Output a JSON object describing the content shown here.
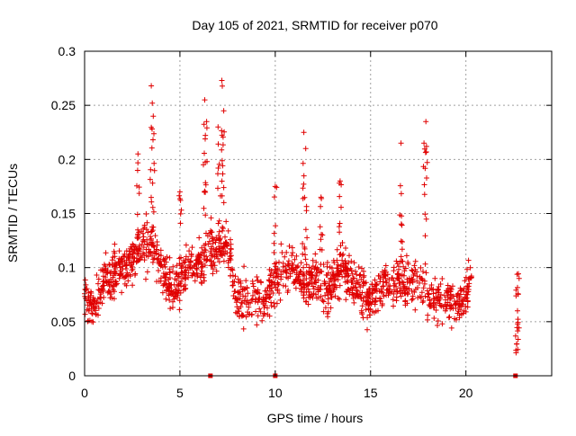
{
  "chart_data": {
    "type": "scatter",
    "title": "Day 105 of 2021, SRMTID for receiver p070",
    "xlabel": "GPS time / hours",
    "ylabel": "SRMTID / TECUs",
    "xlim": [
      0,
      24.5
    ],
    "ylim": [
      0,
      0.3
    ],
    "xticks": [
      0,
      5,
      10,
      15,
      20
    ],
    "xtick_labels": [
      "0",
      "5",
      "10",
      "15",
      "20"
    ],
    "yticks": [
      0,
      0.05,
      0.1,
      0.15,
      0.2,
      0.25,
      0.3
    ],
    "ytick_labels": [
      "0",
      "0.05",
      "0.1",
      "0.15",
      "0.2",
      "0.25",
      "0.3"
    ],
    "grid": true,
    "marker": "+",
    "color": "#e00000",
    "profile": [
      [
        0.0,
        0.075
      ],
      [
        0.5,
        0.065
      ],
      [
        1.0,
        0.085
      ],
      [
        1.5,
        0.095
      ],
      [
        2.0,
        0.1
      ],
      [
        2.5,
        0.105
      ],
      [
        3.0,
        0.12
      ],
      [
        3.5,
        0.125
      ],
      [
        4.0,
        0.1
      ],
      [
        4.5,
        0.08
      ],
      [
        5.0,
        0.085
      ],
      [
        5.5,
        0.1
      ],
      [
        6.0,
        0.1
      ],
      [
        6.5,
        0.12
      ],
      [
        7.0,
        0.115
      ],
      [
        7.5,
        0.12
      ],
      [
        8.0,
        0.07
      ],
      [
        8.5,
        0.07
      ],
      [
        9.0,
        0.075
      ],
      [
        9.5,
        0.07
      ],
      [
        10.0,
        0.09
      ],
      [
        10.5,
        0.095
      ],
      [
        11.0,
        0.1
      ],
      [
        11.5,
        0.085
      ],
      [
        12.0,
        0.09
      ],
      [
        12.5,
        0.08
      ],
      [
        13.0,
        0.08
      ],
      [
        13.5,
        0.105
      ],
      [
        14.0,
        0.085
      ],
      [
        14.5,
        0.08
      ],
      [
        15.0,
        0.07
      ],
      [
        15.5,
        0.08
      ],
      [
        16.0,
        0.085
      ],
      [
        16.5,
        0.09
      ],
      [
        17.0,
        0.085
      ],
      [
        17.5,
        0.09
      ],
      [
        18.0,
        0.07
      ],
      [
        18.5,
        0.07
      ],
      [
        19.0,
        0.07
      ],
      [
        19.5,
        0.065
      ],
      [
        20.0,
        0.075
      ],
      [
        20.3,
        0.09
      ]
    ],
    "peaks": [
      {
        "x": 2.8,
        "y": 0.205
      },
      {
        "x": 3.5,
        "y": 0.268
      },
      {
        "x": 3.6,
        "y": 0.24
      },
      {
        "x": 6.3,
        "y": 0.255
      },
      {
        "x": 6.4,
        "y": 0.235
      },
      {
        "x": 7.2,
        "y": 0.273
      },
      {
        "x": 7.3,
        "y": 0.245
      },
      {
        "x": 7.0,
        "y": 0.23
      },
      {
        "x": 11.5,
        "y": 0.225
      },
      {
        "x": 11.6,
        "y": 0.21
      },
      {
        "x": 13.4,
        "y": 0.18
      },
      {
        "x": 16.6,
        "y": 0.215
      },
      {
        "x": 17.9,
        "y": 0.235
      },
      {
        "x": 17.8,
        "y": 0.215
      },
      {
        "x": 10.0,
        "y": 0.175
      },
      {
        "x": 5.0,
        "y": 0.17
      },
      {
        "x": 12.4,
        "y": 0.165
      }
    ],
    "late_cluster": {
      "x_range": [
        22.6,
        22.8
      ],
      "y_range": [
        0.02,
        0.095
      ]
    },
    "zero_markers": [
      6.6,
      10.0,
      22.6
    ]
  }
}
